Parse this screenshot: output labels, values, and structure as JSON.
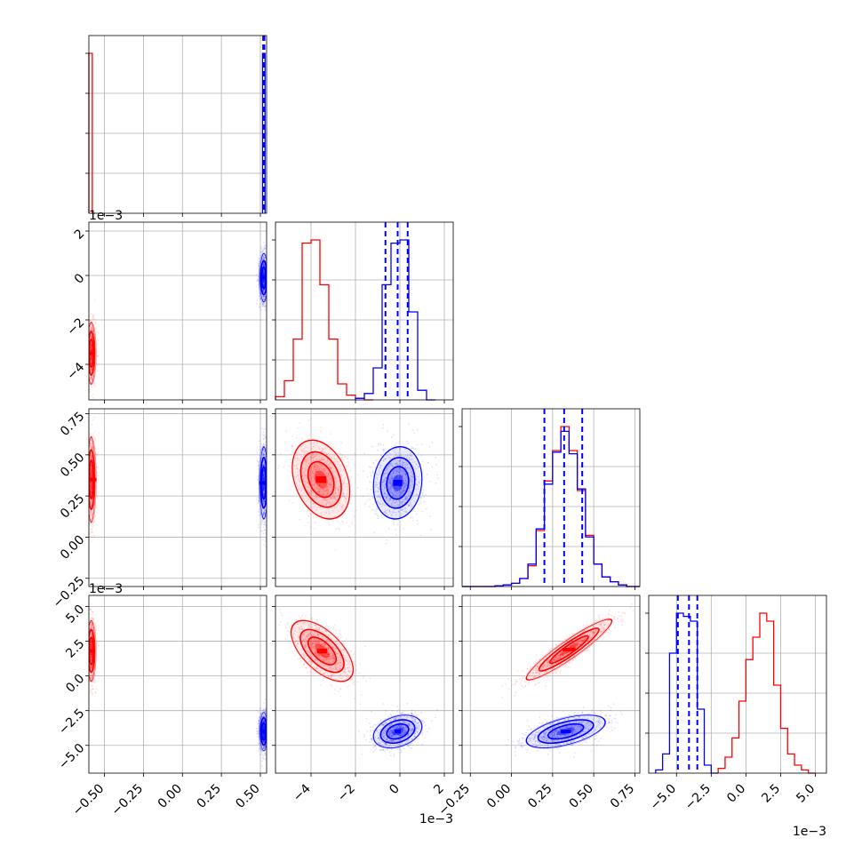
{
  "chart_data": {
    "type": "corner",
    "title": "",
    "grid": true,
    "series_colors": {
      "red": "#ff0000",
      "blue": "#0000ff"
    },
    "parameters": [
      {
        "range": [
          -0.6,
          0.54
        ],
        "ticks": [
          "−0.50",
          "−0.25",
          "0.00",
          "0.25",
          "0.50"
        ],
        "tick_values": [
          -0.5,
          -0.25,
          0,
          0.25,
          0.5
        ],
        "offset": "",
        "red_center": -0.585,
        "blue_center": 0.522,
        "blue_quantiles": [
          0.518,
          0.522,
          0.526
        ]
      },
      {
        "range": [
          -5.6,
          2.4
        ],
        "ticks": [
          "−4",
          "−2",
          "0",
          "2"
        ],
        "tick_values": [
          -4,
          -2,
          0,
          2
        ],
        "offset": "1e−3",
        "red_center": -3.5,
        "blue_center": -0.1,
        "blue_quantiles": [
          -0.65,
          -0.1,
          0.35
        ]
      },
      {
        "range": [
          -0.3,
          0.78
        ],
        "ticks": [
          "−0.25",
          "0.00",
          "0.25",
          "0.50",
          "0.75"
        ],
        "tick_values": [
          -0.25,
          0,
          0.25,
          0.5,
          0.75
        ],
        "offset": "",
        "red_center": 0.35,
        "blue_center": 0.33,
        "blue_quantiles": [
          0.2,
          0.32,
          0.43
        ]
      },
      {
        "range": [
          -7.0,
          5.8
        ],
        "ticks": [
          "−5.0",
          "−2.5",
          "0.0",
          "2.5",
          "5.0"
        ],
        "tick_values": [
          -5,
          -2.5,
          0,
          2.5,
          5
        ],
        "offset": "1e−3",
        "red_center": 1.7,
        "blue_center": -4.0,
        "blue_quantiles": [
          -4.9,
          -4.1,
          -3.5
        ]
      }
    ],
    "histograms": [
      {
        "param": 0,
        "red": {
          "edges": [
            -0.6,
            -0.578,
            -0.56
          ],
          "counts": [
            1.0,
            0
          ]
        },
        "blue": {
          "edges": [
            0.514,
            0.53
          ],
          "counts": [
            1.0
          ]
        }
      },
      {
        "param": 1,
        "red": {
          "edges": [
            -5.6,
            -5.2,
            -4.8,
            -4.4,
            -4.0,
            -3.6,
            -3.2,
            -2.8,
            -2.4,
            -2.0,
            -1.6,
            -1.2
          ],
          "counts": [
            0.02,
            0.12,
            0.38,
            0.98,
            1.0,
            0.72,
            0.38,
            0.1,
            0.03,
            0.01,
            0.0
          ]
        },
        "blue": {
          "edges": [
            -2.0,
            -1.6,
            -1.2,
            -0.8,
            -0.4,
            0.0,
            0.4,
            0.8,
            1.2,
            1.6
          ],
          "counts": [
            0.01,
            0.04,
            0.2,
            0.72,
            0.98,
            1.0,
            0.55,
            0.06,
            0.0
          ]
        }
      },
      {
        "param": 2,
        "red": {
          "edges": [
            -0.3,
            -0.1,
            -0.05,
            0.0,
            0.05,
            0.1,
            0.15,
            0.2,
            0.25,
            0.3,
            0.35,
            0.4,
            0.45,
            0.5,
            0.55,
            0.6,
            0.65,
            0.7,
            0.78
          ],
          "counts": [
            0.0,
            0.005,
            0.01,
            0.02,
            0.05,
            0.13,
            0.35,
            0.66,
            0.85,
            1.0,
            0.85,
            0.6,
            0.32,
            0.14,
            0.06,
            0.03,
            0.01,
            0.0
          ]
        },
        "blue": {
          "edges": [
            -0.3,
            -0.1,
            -0.05,
            0.0,
            0.05,
            0.1,
            0.15,
            0.2,
            0.25,
            0.3,
            0.35,
            0.4,
            0.45,
            0.5,
            0.55,
            0.6,
            0.65,
            0.7,
            0.78
          ],
          "counts": [
            0.0,
            0.004,
            0.01,
            0.02,
            0.05,
            0.14,
            0.36,
            0.64,
            0.84,
            0.97,
            0.83,
            0.61,
            0.31,
            0.14,
            0.06,
            0.03,
            0.01,
            0.0
          ]
        }
      },
      {
        "param": 3,
        "red": {
          "edges": [
            -2.0,
            -1.5,
            -1.0,
            -0.5,
            0.0,
            0.5,
            1.0,
            1.5,
            2.0,
            2.5,
            3.0,
            3.5,
            4.0,
            4.5,
            5.0
          ],
          "counts": [
            0.03,
            0.1,
            0.22,
            0.45,
            0.71,
            0.85,
            1.0,
            0.95,
            0.55,
            0.28,
            0.12,
            0.05,
            0.02,
            0.0
          ]
        },
        "blue": {
          "edges": [
            -6.5,
            -6.0,
            -5.5,
            -5.0,
            -4.5,
            -4.0,
            -3.5,
            -3.0,
            -2.5,
            -2.0
          ],
          "counts": [
            0.02,
            0.12,
            0.75,
            1.0,
            0.98,
            0.95,
            0.4,
            0.05,
            0.0
          ]
        }
      }
    ],
    "pairs": [
      {
        "x": 0,
        "y": 1,
        "red": {
          "cx": -0.585,
          "cy": -3.5,
          "sx": 0.004,
          "sy": 0.7,
          "rho": 0.0
        },
        "blue": {
          "cx": 0.522,
          "cy": -0.1,
          "sx": 0.004,
          "sy": 0.55,
          "rho": 0.0
        }
      },
      {
        "x": 0,
        "y": 2,
        "red": {
          "cx": -0.585,
          "cy": 0.35,
          "sx": 0.004,
          "sy": 0.13,
          "rho": 0.0
        },
        "blue": {
          "cx": 0.522,
          "cy": 0.33,
          "sx": 0.004,
          "sy": 0.11,
          "rho": 0.0
        }
      },
      {
        "x": 0,
        "y": 3,
        "red": {
          "cx": -0.585,
          "cy": 1.8,
          "sx": 0.004,
          "sy": 1.1,
          "rho": 0.0
        },
        "blue": {
          "cx": 0.522,
          "cy": -4.0,
          "sx": 0.004,
          "sy": 0.7,
          "rho": 0.0
        }
      },
      {
        "x": 1,
        "y": 2,
        "red": {
          "cx": -3.55,
          "cy": 0.35,
          "sx": 0.65,
          "sy": 0.12,
          "rho": -0.3
        },
        "blue": {
          "cx": -0.1,
          "cy": 0.33,
          "sx": 0.55,
          "sy": 0.11,
          "rho": 0.1
        }
      },
      {
        "x": 1,
        "y": 3,
        "red": {
          "cx": -3.5,
          "cy": 1.8,
          "sx": 0.7,
          "sy": 1.1,
          "rho": -0.6
        },
        "blue": {
          "cx": -0.1,
          "cy": -4.0,
          "sx": 0.55,
          "sy": 0.6,
          "rho": 0.3
        }
      },
      {
        "x": 2,
        "y": 3,
        "red": {
          "cx": 0.35,
          "cy": 1.9,
          "sx": 0.13,
          "sy": 1.1,
          "rho": 0.93
        },
        "blue": {
          "cx": 0.33,
          "cy": -4.0,
          "sx": 0.12,
          "sy": 0.6,
          "rho": 0.55
        }
      }
    ]
  }
}
